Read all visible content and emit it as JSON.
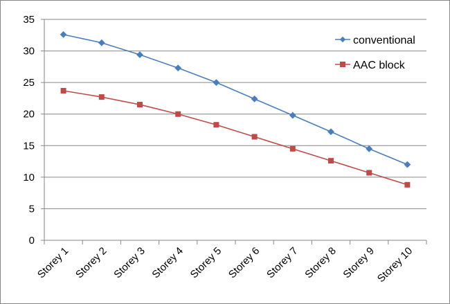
{
  "chart_data": {
    "type": "line",
    "categories": [
      "Storey 1",
      "Storey 2",
      "Storey 3",
      "Storey 4",
      "Storey 5",
      "Storey 6",
      "Storey 7",
      "Storey 8",
      "Storey 9",
      "Storey 10"
    ],
    "series": [
      {
        "name": "conventional",
        "color": "#4a7ebb",
        "marker": "diamond",
        "values": [
          32.6,
          31.3,
          29.4,
          27.3,
          25.0,
          22.4,
          19.8,
          17.2,
          14.5,
          12.0
        ]
      },
      {
        "name": "AAC block",
        "color": "#be4b48",
        "marker": "square",
        "values": [
          23.7,
          22.7,
          21.5,
          20.0,
          18.3,
          16.4,
          14.5,
          12.6,
          10.7,
          8.8
        ]
      }
    ],
    "ylim": [
      0,
      35
    ],
    "yticks": [
      0,
      5,
      10,
      15,
      20,
      25,
      30,
      35
    ],
    "grid": true,
    "legend_position": "top-right",
    "xlabel": "",
    "ylabel": "",
    "title": ""
  }
}
